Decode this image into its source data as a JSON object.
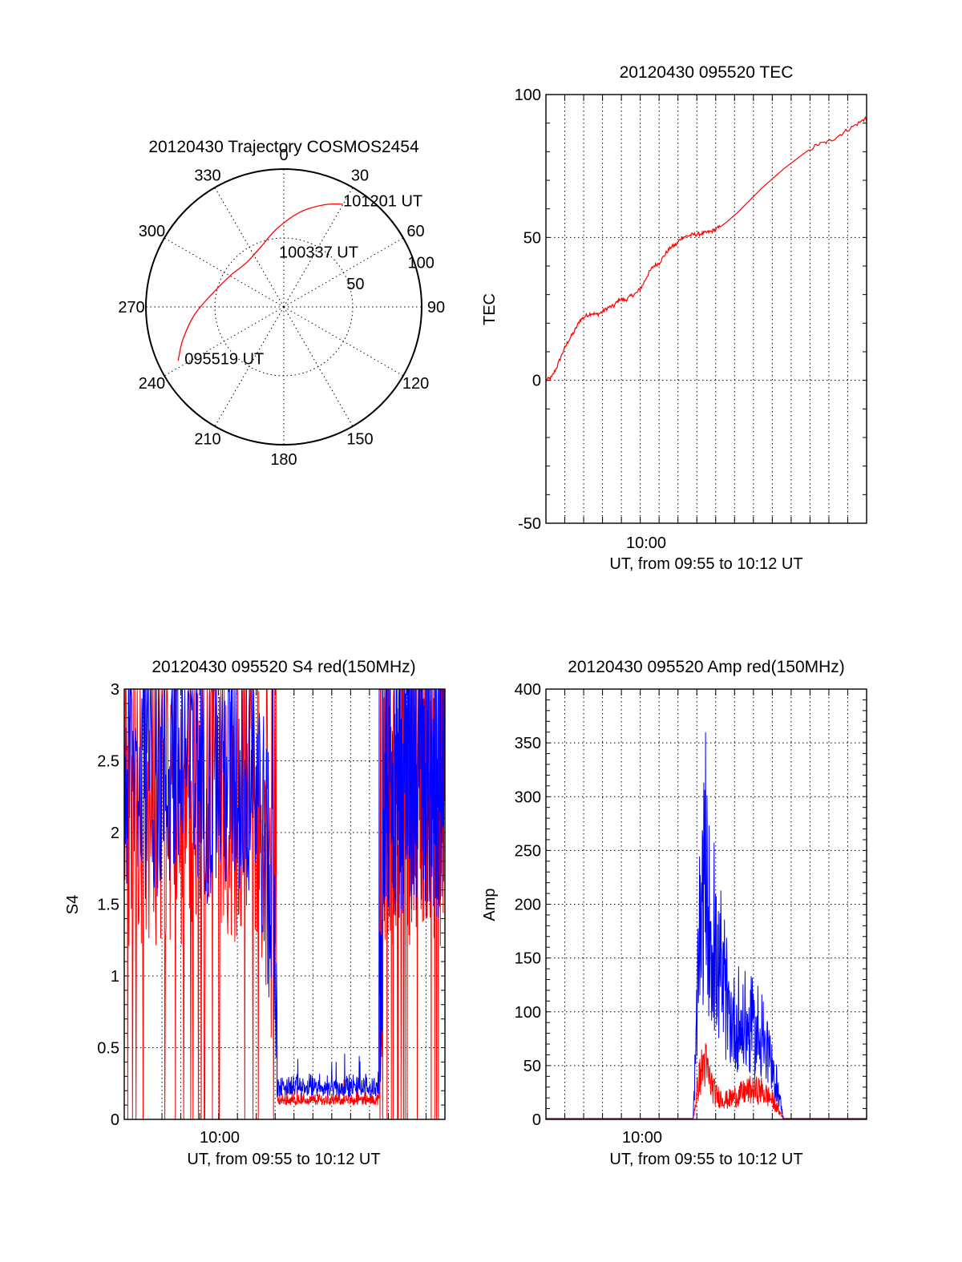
{
  "chart_data": [
    {
      "type": "polar",
      "title": "20120430 Trajectory COSMOS2454",
      "azimuth_labels": [
        "0",
        "30",
        "60",
        "90",
        "120",
        "150",
        "180",
        "210",
        "240",
        "270",
        "300",
        "330"
      ],
      "radial_labels": [
        "50",
        "100"
      ],
      "series": [
        {
          "color": "#ff0000",
          "points": [
            {
              "az": 243,
              "r": 86
            },
            {
              "az": 252,
              "r": 77
            },
            {
              "az": 265,
              "r": 65
            },
            {
              "az": 280,
              "r": 53
            },
            {
              "az": 300,
              "r": 45
            },
            {
              "az": 320,
              "r": 42
            },
            {
              "az": 340,
              "r": 47
            },
            {
              "az": 355,
              "r": 57
            },
            {
              "az": 10,
              "r": 70
            },
            {
              "az": 22,
              "r": 80
            },
            {
              "az": 30,
              "r": 86
            }
          ]
        }
      ],
      "annotations": [
        {
          "text": "101201 UT",
          "az": 33,
          "r": 92
        },
        {
          "text": "100337 UT",
          "az": 5,
          "r": 40
        },
        {
          "text": "095519 UT",
          "az": 240,
          "r": 75
        }
      ]
    },
    {
      "type": "line",
      "title": "20120430 095520 TEC",
      "xlabel": "UT, from 09:55 to 10:12 UT",
      "ylabel": "TEC",
      "xlim": [
        9.916667,
        10.2
      ],
      "ylim": [
        -50,
        100
      ],
      "yticks": [
        -50,
        0,
        50,
        100
      ],
      "xtick_labels": [
        {
          "x": 10.0,
          "label": "10:00"
        }
      ],
      "grid": true,
      "series": [
        {
          "color": "#ff0000",
          "x": [
            9.9167,
            9.9217,
            9.9267,
            9.9317,
            9.9367,
            9.9417,
            9.9467,
            9.9517,
            9.9567,
            9.9617,
            9.9667,
            9.9717,
            9.9767,
            9.9817,
            9.9867,
            9.9917,
            9.9967,
            10.0017,
            10.0067,
            10.0117,
            10.0167,
            10.0217,
            10.0267,
            10.0317,
            10.0367,
            10.0417,
            10.0467,
            10.0517,
            10.0567,
            10.0617,
            10.0667,
            10.0717,
            10.0767,
            10.0867,
            10.0967,
            10.1067,
            10.1167,
            10.1267,
            10.1367,
            10.1467,
            10.1567,
            10.1667,
            10.1767,
            10.1867,
            10.1967,
            10.2
          ],
          "y": [
            0,
            1,
            5,
            10,
            14,
            17,
            21,
            22.5,
            23.5,
            23,
            24,
            25.5,
            26,
            28.5,
            28,
            29.5,
            30.5,
            33,
            37,
            40,
            41,
            44,
            46.5,
            47.5,
            50,
            50.5,
            51,
            51.2,
            51.5,
            52,
            52.8,
            54,
            55.5,
            59,
            63,
            67,
            70.5,
            74,
            77,
            80,
            82.5,
            83.5,
            86,
            88.5,
            91,
            92
          ]
        }
      ]
    },
    {
      "type": "line",
      "title": "20120430 095520 S4 red(150MHz)",
      "xlabel": "UT, from 09:55 to 10:12 UT",
      "ylabel": "S4",
      "xlim": [
        9.916667,
        10.2
      ],
      "ylim": [
        0,
        3
      ],
      "yticks": [
        0,
        0.5,
        1,
        1.5,
        2,
        2.5,
        3
      ],
      "ytick_labels": [
        "0",
        "0.5",
        "1",
        "1.5",
        "2",
        "2.5",
        "3"
      ],
      "xtick_labels": [
        {
          "x": 10.0,
          "label": "10:00"
        }
      ],
      "grid": true,
      "series": [
        {
          "color": "#0000ff",
          "segments": [
            {
              "x_start": 9.9167,
              "x_end": 10.0517,
              "noise": "high",
              "base": 2.4,
              "amp": 0.9
            },
            {
              "x_start": 10.0517,
              "x_end": 10.1417,
              "noise": "low",
              "base": 0.16,
              "amp": 0.18
            },
            {
              "x_start": 10.1417,
              "x_end": 10.2,
              "noise": "high",
              "base": 2.3,
              "amp": 0.9
            }
          ]
        },
        {
          "color": "#ff0000",
          "segments": [
            {
              "x_start": 9.9167,
              "x_end": 10.0517,
              "noise": "high",
              "base": 2.2,
              "amp": 1.0
            },
            {
              "x_start": 10.0517,
              "x_end": 10.1417,
              "noise": "low",
              "base": 0.1,
              "amp": 0.1
            },
            {
              "x_start": 10.1417,
              "x_end": 10.2,
              "noise": "high",
              "base": 2.2,
              "amp": 1.0
            }
          ]
        }
      ]
    },
    {
      "type": "line",
      "title": "20120430 095520 Amp red(150MHz)",
      "xlabel": "UT, from 09:55 to 10:12 UT",
      "ylabel": "Amp",
      "xlim": [
        9.916667,
        10.2
      ],
      "ylim": [
        0,
        400
      ],
      "yticks": [
        0,
        50,
        100,
        150,
        200,
        250,
        300,
        350,
        400
      ],
      "xtick_labels": [
        {
          "x": 10.0,
          "label": "10:00"
        }
      ],
      "grid": true,
      "series": [
        {
          "color": "#0000ff",
          "envelope_x": [
            9.9167,
            10.0467,
            10.0517,
            10.0567,
            10.0617,
            10.0667,
            10.0717,
            10.0767,
            10.0867,
            10.0967,
            10.1067,
            10.1167,
            10.1217,
            10.1267,
            10.2
          ],
          "envelope_y": [
            0,
            0,
            150,
            250,
            200,
            160,
            140,
            110,
            95,
            90,
            80,
            45,
            30,
            0,
            0
          ]
        },
        {
          "color": "#ff0000",
          "envelope_x": [
            9.9167,
            10.0467,
            10.0517,
            10.0567,
            10.0617,
            10.0667,
            10.0767,
            10.0867,
            10.0967,
            10.1067,
            10.1167,
            10.1267,
            10.2
          ],
          "envelope_y": [
            0,
            0,
            40,
            60,
            40,
            25,
            20,
            25,
            30,
            30,
            20,
            0,
            0
          ]
        }
      ]
    }
  ]
}
